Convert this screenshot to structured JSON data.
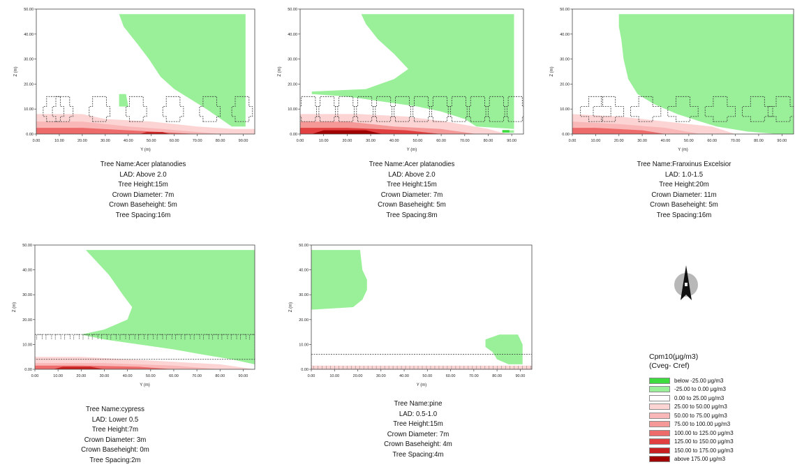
{
  "colors": {
    "below_-25": "#3ddb3d",
    "-25_0": "#99f099",
    "0_25": "#ffffff",
    "25_50": "#fcd4d4",
    "50_75": "#f9b7b7",
    "75_100": "#f59898",
    "100_125": "#ee6b6b",
    "125_150": "#e24040",
    "150_175": "#c82020",
    "above_175": "#a00000"
  },
  "axes": {
    "y_label": "Y (m)",
    "z_label": "Z (m)",
    "x_ticks": [
      "0.00",
      "10.00",
      "20.00",
      "30.00",
      "40.00",
      "50.00",
      "60.00",
      "70.00",
      "80.00",
      "90.00"
    ],
    "z_ticks": [
      "0.00",
      "10.00",
      "20.00",
      "30.00",
      "40.00",
      "50.00"
    ],
    "xlim": [
      0,
      95
    ],
    "zlim": [
      0,
      50
    ]
  },
  "chart_data": [
    {
      "type": "heatmap",
      "xlabel": "Y (m)",
      "ylabel": "Z (m)",
      "xlim": [
        0,
        95
      ],
      "ylim": [
        0,
        50
      ],
      "caption": [
        "Tree Name:Acer platanodies",
        "LAD: Above 2.0",
        "Tree Height:15m",
        "Crown Diameter: 7m",
        "Crown Baseheight: 5m",
        "Tree Spacing:16m"
      ],
      "trees": [
        [
          0,
          15,
          7,
          5
        ],
        [
          4,
          19,
          7,
          5
        ],
        [
          20,
          35,
          7,
          5
        ],
        [
          36,
          51,
          7,
          5
        ],
        [
          52,
          67,
          7,
          5
        ],
        [
          68,
          83,
          7,
          5
        ],
        [
          84,
          95,
          7,
          5
        ]
      ],
      "green": [
        [
          [
            36,
            48
          ],
          [
            91,
            48
          ],
          [
            91,
            3
          ],
          [
            85,
            3
          ],
          [
            74,
            10
          ],
          [
            67,
            14
          ],
          [
            60,
            18
          ],
          [
            54,
            23
          ],
          [
            49,
            30
          ],
          [
            44,
            36
          ],
          [
            38,
            43
          ]
        ],
        [
          [
            36,
            16
          ],
          [
            39,
            16
          ],
          [
            40,
            11
          ],
          [
            36,
            11
          ]
        ]
      ],
      "red": [
        {
          "c": "25_50",
          "pts": [
            [
              0,
              0
            ],
            [
              97,
              0
            ],
            [
              97,
              2
            ],
            [
              86,
              2
            ],
            [
              70,
              3
            ],
            [
              50,
              5
            ],
            [
              30,
              6
            ],
            [
              20,
              8
            ],
            [
              0,
              8
            ]
          ]
        },
        {
          "c": "50_75",
          "pts": [
            [
              0,
              0
            ],
            [
              80,
              0
            ],
            [
              55,
              2
            ],
            [
              40,
              3
            ],
            [
              20,
              5
            ],
            [
              0,
              5
            ]
          ]
        },
        {
          "c": "100_125",
          "pts": [
            [
              0,
              0
            ],
            [
              70,
              0
            ],
            [
              50,
              1
            ],
            [
              20,
              2.5
            ],
            [
              0,
              2.5
            ]
          ]
        },
        {
          "c": "150_175",
          "pts": [
            [
              45,
              0
            ],
            [
              58,
              0
            ],
            [
              55,
              0.8
            ],
            [
              48,
              0.8
            ]
          ]
        }
      ]
    },
    {
      "type": "heatmap",
      "xlabel": "Y (m)",
      "ylabel": "Z (m)",
      "xlim": [
        0,
        95
      ],
      "ylim": [
        0,
        50
      ],
      "caption": [
        "Tree Name:Acer platanodies",
        "LAD: Above 2.0",
        "Tree Height:15m",
        "Crown Diameter: 7m",
        "Crown Baseheight: 5m",
        "Tree Spacing:8m"
      ],
      "trees": [
        [
          0,
          7,
          7,
          5
        ],
        [
          8,
          15,
          7,
          5
        ],
        [
          16,
          23,
          7,
          5
        ],
        [
          24,
          31,
          7,
          5
        ],
        [
          32,
          39,
          7,
          5
        ],
        [
          40,
          47,
          7,
          5
        ],
        [
          48,
          55,
          7,
          5
        ],
        [
          56,
          63,
          7,
          5
        ],
        [
          64,
          71,
          7,
          5
        ],
        [
          72,
          79,
          7,
          5
        ],
        [
          80,
          87,
          7,
          5
        ],
        [
          88,
          95,
          7,
          5
        ]
      ],
      "green": [
        [
          [
            26,
            48
          ],
          [
            91,
            48
          ],
          [
            91,
            2
          ],
          [
            75,
            3
          ],
          [
            70,
            6
          ],
          [
            60,
            9
          ],
          [
            50,
            11
          ],
          [
            35,
            13
          ],
          [
            20,
            15
          ],
          [
            5,
            16
          ],
          [
            5,
            17
          ],
          [
            28,
            18
          ],
          [
            34,
            20
          ],
          [
            40,
            22
          ],
          [
            46,
            26
          ],
          [
            40,
            32
          ],
          [
            33,
            38
          ],
          [
            28,
            44
          ]
        ],
        [
          [
            86,
            1.5
          ],
          [
            91,
            1.5
          ],
          [
            91,
            0.5
          ],
          [
            86,
            0.5
          ]
        ]
      ],
      "red": [
        {
          "c": "25_50",
          "pts": [
            [
              0,
              0
            ],
            [
              88,
              0
            ],
            [
              80,
              2
            ],
            [
              62,
              5
            ],
            [
              45,
              7
            ],
            [
              25,
              8
            ],
            [
              0,
              8
            ]
          ]
        },
        {
          "c": "75_100",
          "pts": [
            [
              0,
              0
            ],
            [
              75,
              0
            ],
            [
              60,
              2
            ],
            [
              40,
              3
            ],
            [
              20,
              5
            ],
            [
              0,
              5
            ]
          ]
        },
        {
          "c": "125_150",
          "pts": [
            [
              0,
              0
            ],
            [
              60,
              0
            ],
            [
              45,
              1.5
            ],
            [
              20,
              2.5
            ],
            [
              0,
              2.5
            ]
          ]
        },
        {
          "c": "above_175",
          "pts": [
            [
              5,
              0
            ],
            [
              35,
              0
            ],
            [
              28,
              1.5
            ],
            [
              10,
              1.5
            ]
          ]
        }
      ]
    },
    {
      "type": "heatmap",
      "xlabel": "Y (m)",
      "ylabel": "Z (m)",
      "xlim": [
        0,
        95
      ],
      "ylim": [
        0,
        50
      ],
      "caption": [
        "Tree Name:Franxinus Excelsior",
        "LAD: 1.0-1.5",
        "Tree Height:20m",
        "Crown Diameter: 11m",
        "Crown Baseheight: 5m",
        "Tree Spacing:16m"
      ],
      "trees": [
        [
          0,
          20,
          11,
          5
        ],
        [
          6,
          25,
          11,
          5
        ],
        [
          22,
          41,
          11,
          5
        ],
        [
          38,
          57,
          11,
          5
        ],
        [
          54,
          73,
          11,
          5
        ],
        [
          70,
          89,
          11,
          5
        ],
        [
          86,
          95,
          11,
          5
        ]
      ],
      "green": [
        [
          [
            20,
            48
          ],
          [
            95,
            48
          ],
          [
            95,
            0
          ],
          [
            88,
            0
          ],
          [
            75,
            1
          ],
          [
            62,
            3
          ],
          [
            55,
            5
          ],
          [
            45,
            8
          ],
          [
            35,
            12
          ],
          [
            28,
            16
          ],
          [
            24,
            22
          ],
          [
            22,
            30
          ],
          [
            21,
            38
          ],
          [
            20,
            43
          ]
        ]
      ],
      "red": [
        {
          "c": "25_50",
          "pts": [
            [
              0,
              0
            ],
            [
              70,
              0
            ],
            [
              60,
              3
            ],
            [
              40,
              5
            ],
            [
              20,
              7
            ],
            [
              0,
              8
            ]
          ]
        },
        {
          "c": "50_75",
          "pts": [
            [
              0,
              0
            ],
            [
              55,
              0
            ],
            [
              40,
              2.5
            ],
            [
              20,
              4
            ],
            [
              0,
              5
            ]
          ]
        },
        {
          "c": "100_125",
          "pts": [
            [
              0,
              0
            ],
            [
              40,
              0
            ],
            [
              30,
              1.5
            ],
            [
              10,
              2.5
            ],
            [
              0,
              2.5
            ]
          ]
        }
      ]
    },
    {
      "type": "heatmap",
      "xlabel": "Y (m)",
      "ylabel": "Z (m)",
      "xlim": [
        0,
        95
      ],
      "ylim": [
        0,
        50
      ],
      "caption": [
        "Tree Name:cypress",
        "LAD: Lower 0.5",
        "Tree Height:7m",
        "Crown Diameter: 3m",
        "Crown Baseheight: 0m",
        "Tree Spacing:2m"
      ],
      "band": [
        0,
        95,
        4,
        14
      ],
      "green": [
        [
          [
            22,
            48
          ],
          [
            95,
            48
          ],
          [
            95,
            2
          ],
          [
            85,
            4
          ],
          [
            72,
            6
          ],
          [
            60,
            8
          ],
          [
            45,
            10
          ],
          [
            30,
            12
          ],
          [
            20,
            14
          ],
          [
            30,
            16
          ],
          [
            40,
            20
          ],
          [
            42,
            25
          ],
          [
            38,
            30
          ],
          [
            32,
            38
          ],
          [
            26,
            44
          ]
        ]
      ],
      "red": [
        {
          "c": "25_50",
          "pts": [
            [
              0,
              0
            ],
            [
              95,
              0
            ],
            [
              80,
              2
            ],
            [
              60,
              3
            ],
            [
              40,
              4
            ],
            [
              20,
              5
            ],
            [
              0,
              5
            ]
          ]
        },
        {
          "c": "50_75",
          "pts": [
            [
              0,
              0
            ],
            [
              80,
              0
            ],
            [
              60,
              1.5
            ],
            [
              30,
              2.5
            ],
            [
              0,
              2.5
            ]
          ]
        },
        {
          "c": "100_125",
          "pts": [
            [
              0,
              0
            ],
            [
              60,
              0
            ],
            [
              45,
              1
            ],
            [
              20,
              1.5
            ],
            [
              0,
              1.5
            ]
          ]
        },
        {
          "c": "150_175",
          "pts": [
            [
              8,
              0
            ],
            [
              30,
              0
            ],
            [
              24,
              1
            ],
            [
              12,
              1
            ]
          ]
        }
      ]
    },
    {
      "type": "heatmap",
      "xlabel": "Y (m)",
      "ylabel": "Z (m)",
      "xlim": [
        0,
        95
      ],
      "ylim": [
        0,
        50
      ],
      "caption": [
        "Tree Name:pine",
        "LAD: 0.5-1.0",
        "Tree Height:15m",
        "Crown Diameter: 7m",
        "Crown Baseheight: 4m",
        "Tree Spacing:4m"
      ],
      "band": [
        0,
        95,
        0,
        6
      ],
      "green": [
        [
          [
            0,
            48
          ],
          [
            21,
            48
          ],
          [
            22,
            40
          ],
          [
            24,
            36
          ],
          [
            24,
            32
          ],
          [
            22,
            28
          ],
          [
            18,
            25
          ],
          [
            0,
            24
          ]
        ],
        [
          [
            75,
            12
          ],
          [
            81,
            14
          ],
          [
            89,
            14
          ],
          [
            91,
            10
          ],
          [
            91,
            2
          ],
          [
            85,
            2
          ],
          [
            80,
            4
          ],
          [
            78,
            7
          ],
          [
            75,
            9
          ]
        ]
      ],
      "red": [
        {
          "c": "25_50",
          "pts": [
            [
              0,
              0
            ],
            [
              95,
              0
            ],
            [
              95,
              1.5
            ],
            [
              0,
              1.5
            ]
          ]
        }
      ]
    }
  ],
  "legend": {
    "title": "Cpm10(μg/m3)",
    "subtitle": "(Cveg- Cref)",
    "items": [
      {
        "key": "below_-25",
        "label": "below -25.00 μg/m3"
      },
      {
        "key": "-25_0",
        "label": "-25.00 to 0.00 μg/m3"
      },
      {
        "key": "0_25",
        "label": "0.00 to 25.00 μg/m3"
      },
      {
        "key": "25_50",
        "label": "25.00 to 50.00 μg/m3"
      },
      {
        "key": "50_75",
        "label": "50.00 to 75.00 μg/m3"
      },
      {
        "key": "75_100",
        "label": "75.00 to 100.00 μg/m3"
      },
      {
        "key": "100_125",
        "label": "100.00 to 125.00 μg/m3"
      },
      {
        "key": "125_150",
        "label": "125.00 to 150.00 μg/m3"
      },
      {
        "key": "150_175",
        "label": "150.00 to 175.00 μg/m3"
      },
      {
        "key": "above_175",
        "label": "above 175.00 μg/m3"
      }
    ]
  }
}
